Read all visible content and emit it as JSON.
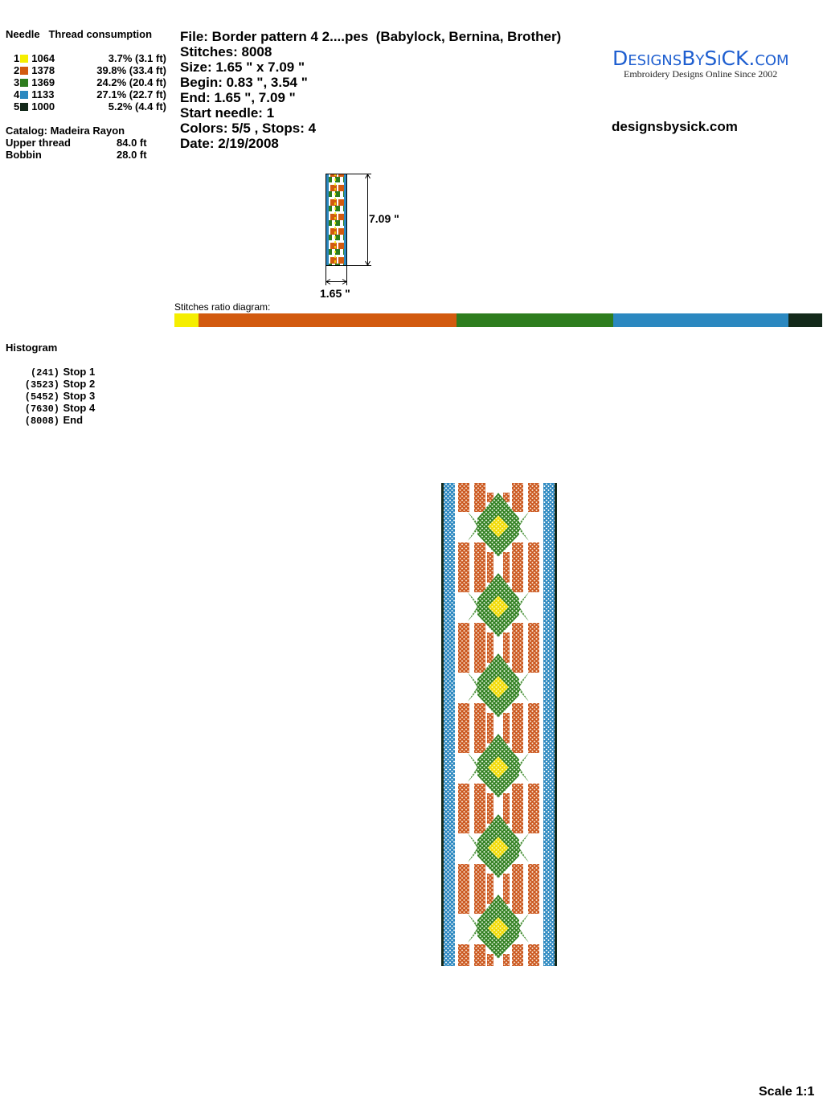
{
  "thread_table": {
    "col_needle": "Needle",
    "col_consumption": "Thread consumption",
    "rows": [
      {
        "needle": "1",
        "color": "#f5ee00",
        "code": "1064",
        "consumption": "3.7% (3.1 ft)"
      },
      {
        "needle": "2",
        "color": "#d25a0f",
        "code": "1378",
        "consumption": "39.8% (33.4 ft)"
      },
      {
        "needle": "3",
        "color": "#2e7d1e",
        "code": "1369",
        "consumption": "24.2% (20.4 ft)"
      },
      {
        "needle": "4",
        "color": "#2b88c0",
        "code": "1133",
        "consumption": "27.1% (22.7 ft)"
      },
      {
        "needle": "5",
        "color": "#13291a",
        "code": "1000",
        "consumption": "5.2% (4.4 ft)"
      }
    ],
    "catalog": "Catalog: Madeira Rayon",
    "upper_label": "Upper thread",
    "upper_value": "84.0 ft",
    "bobbin_label": "Bobbin",
    "bobbin_value": "28.0 ft"
  },
  "info": {
    "file": "File: Border pattern 4 2....pes  (Babylock, Bernina, Brother)",
    "stitches": "Stitches: 8008",
    "size": "Size: 1.65 \" x 7.09 \"",
    "begin": "Begin: 0.83 \", 3.54 \"",
    "end": "End: 1.65 \", 7.09 \"",
    "start_needle": "Start needle: 1",
    "colors": "Colors: 5/5 , Stops: 4",
    "date": "Date: 2/19/2008"
  },
  "logo": {
    "name": "DesignsBySiCK.com",
    "tagline": "Embroidery Designs Online Since 2002"
  },
  "website": "designsbysick.com",
  "thumbnail": {
    "height_label": "7.09 \"",
    "width_label": "1.65 \""
  },
  "ratio": {
    "label": "Stitches ratio diagram:",
    "percents": [
      3.7,
      39.8,
      24.2,
      27.1,
      5.2
    ]
  },
  "histogram": {
    "title": "Histogram",
    "items": [
      {
        "count": "(241)",
        "label": "Stop 1"
      },
      {
        "count": "(3523)",
        "label": "Stop 2"
      },
      {
        "count": "(5452)",
        "label": "Stop 3"
      },
      {
        "count": "(7630)",
        "label": "Stop 4"
      },
      {
        "count": "(8008)",
        "label": "End"
      }
    ]
  },
  "scale": "Scale 1:1"
}
